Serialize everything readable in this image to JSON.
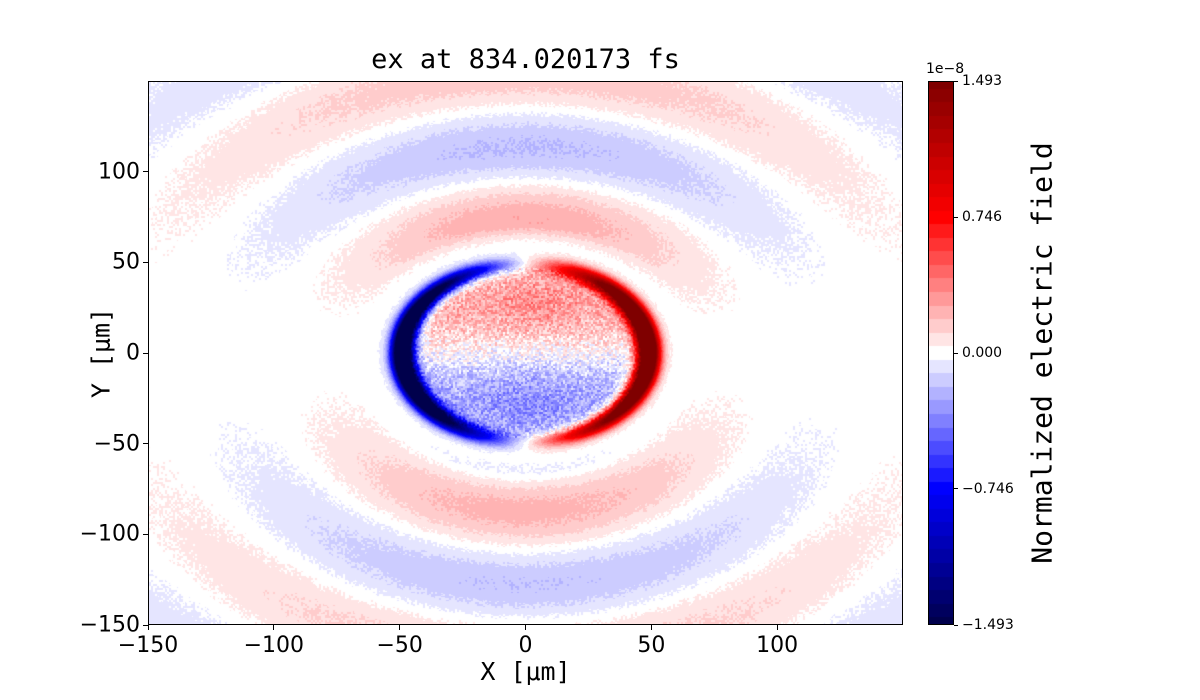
{
  "chart_data": {
    "type": "heatmap",
    "title": "ex at 834.020173 fs",
    "xlabel": "X [μm]",
    "ylabel": "Y [μm]",
    "x_range": [
      -150,
      150
    ],
    "y_range": [
      -150,
      150
    ],
    "x_ticks": [
      -150,
      -100,
      -50,
      0,
      50,
      100
    ],
    "x_tick_labels": [
      "−150",
      "−100",
      "−50",
      "0",
      "50",
      "100"
    ],
    "y_ticks": [
      100,
      50,
      0,
      -50,
      -100,
      -150
    ],
    "y_tick_labels": [
      "100",
      "50",
      "0",
      "−50",
      "−100",
      "−150"
    ],
    "grid": false,
    "colormap": "seismic",
    "colormap_stops": [
      [
        0.0,
        "#00004c"
      ],
      [
        0.25,
        "#0000ff"
      ],
      [
        0.5,
        "#ffffff"
      ],
      [
        0.75,
        "#ff0000"
      ],
      [
        1.0,
        "#7f0000"
      ]
    ],
    "levels": 41,
    "colorbar": {
      "label": "Normalized electric field",
      "offset_label": "1e−8",
      "ticks": [
        1.493,
        0.746,
        0.0,
        -0.746,
        -1.493
      ],
      "tick_labels": [
        "1.493",
        "0.746",
        "0.000",
        "−0.746",
        "−1.493"
      ],
      "vmin": -1.493e-08,
      "vmax": 1.493e-08,
      "position": "right"
    },
    "field_model": {
      "description": "Normalized ex field (in units of vmax=1.493e-8) around a circular scatterer of radius ~50 μm: saturated crescents on the ring (positive/red on the +x side, negative/blue on the −x side, fading toward ±y), a weak dipolar pattern inside the circle (light red upper half, light blue lower half, speckled), and faint outgoing quasi-periodic wave bands outside, strongest toward ±y, with the band pattern shifted slightly inward on top and outward on bottom.",
      "scatterer_radius_um": 50,
      "ring": {
        "radius": 49,
        "width": 4.5,
        "amplitude": 1.6,
        "angular": "cos(theta)"
      },
      "inner_dipole": {
        "amplitude": 0.16,
        "half_period_um": 55,
        "hot_spots": [
          {
            "x": 5,
            "y": 28,
            "amp": 0.07,
            "sigma2": 250
          },
          {
            "x": 0,
            "y": -30,
            "amp": -0.07,
            "sigma2": 350
          }
        ]
      },
      "outer_waves": {
        "amplitude": 0.17,
        "radial_period_um": 80,
        "phase_center_um": 82,
        "updown_shift_um": 7,
        "decay_ref_um": 70,
        "decay_exp": 0.6,
        "taper_start_um": 58,
        "taper_len_um": 14,
        "angular": "sin^2(theta)"
      },
      "noise": {
        "inner": 0.2,
        "outer": 0.03
      }
    }
  }
}
